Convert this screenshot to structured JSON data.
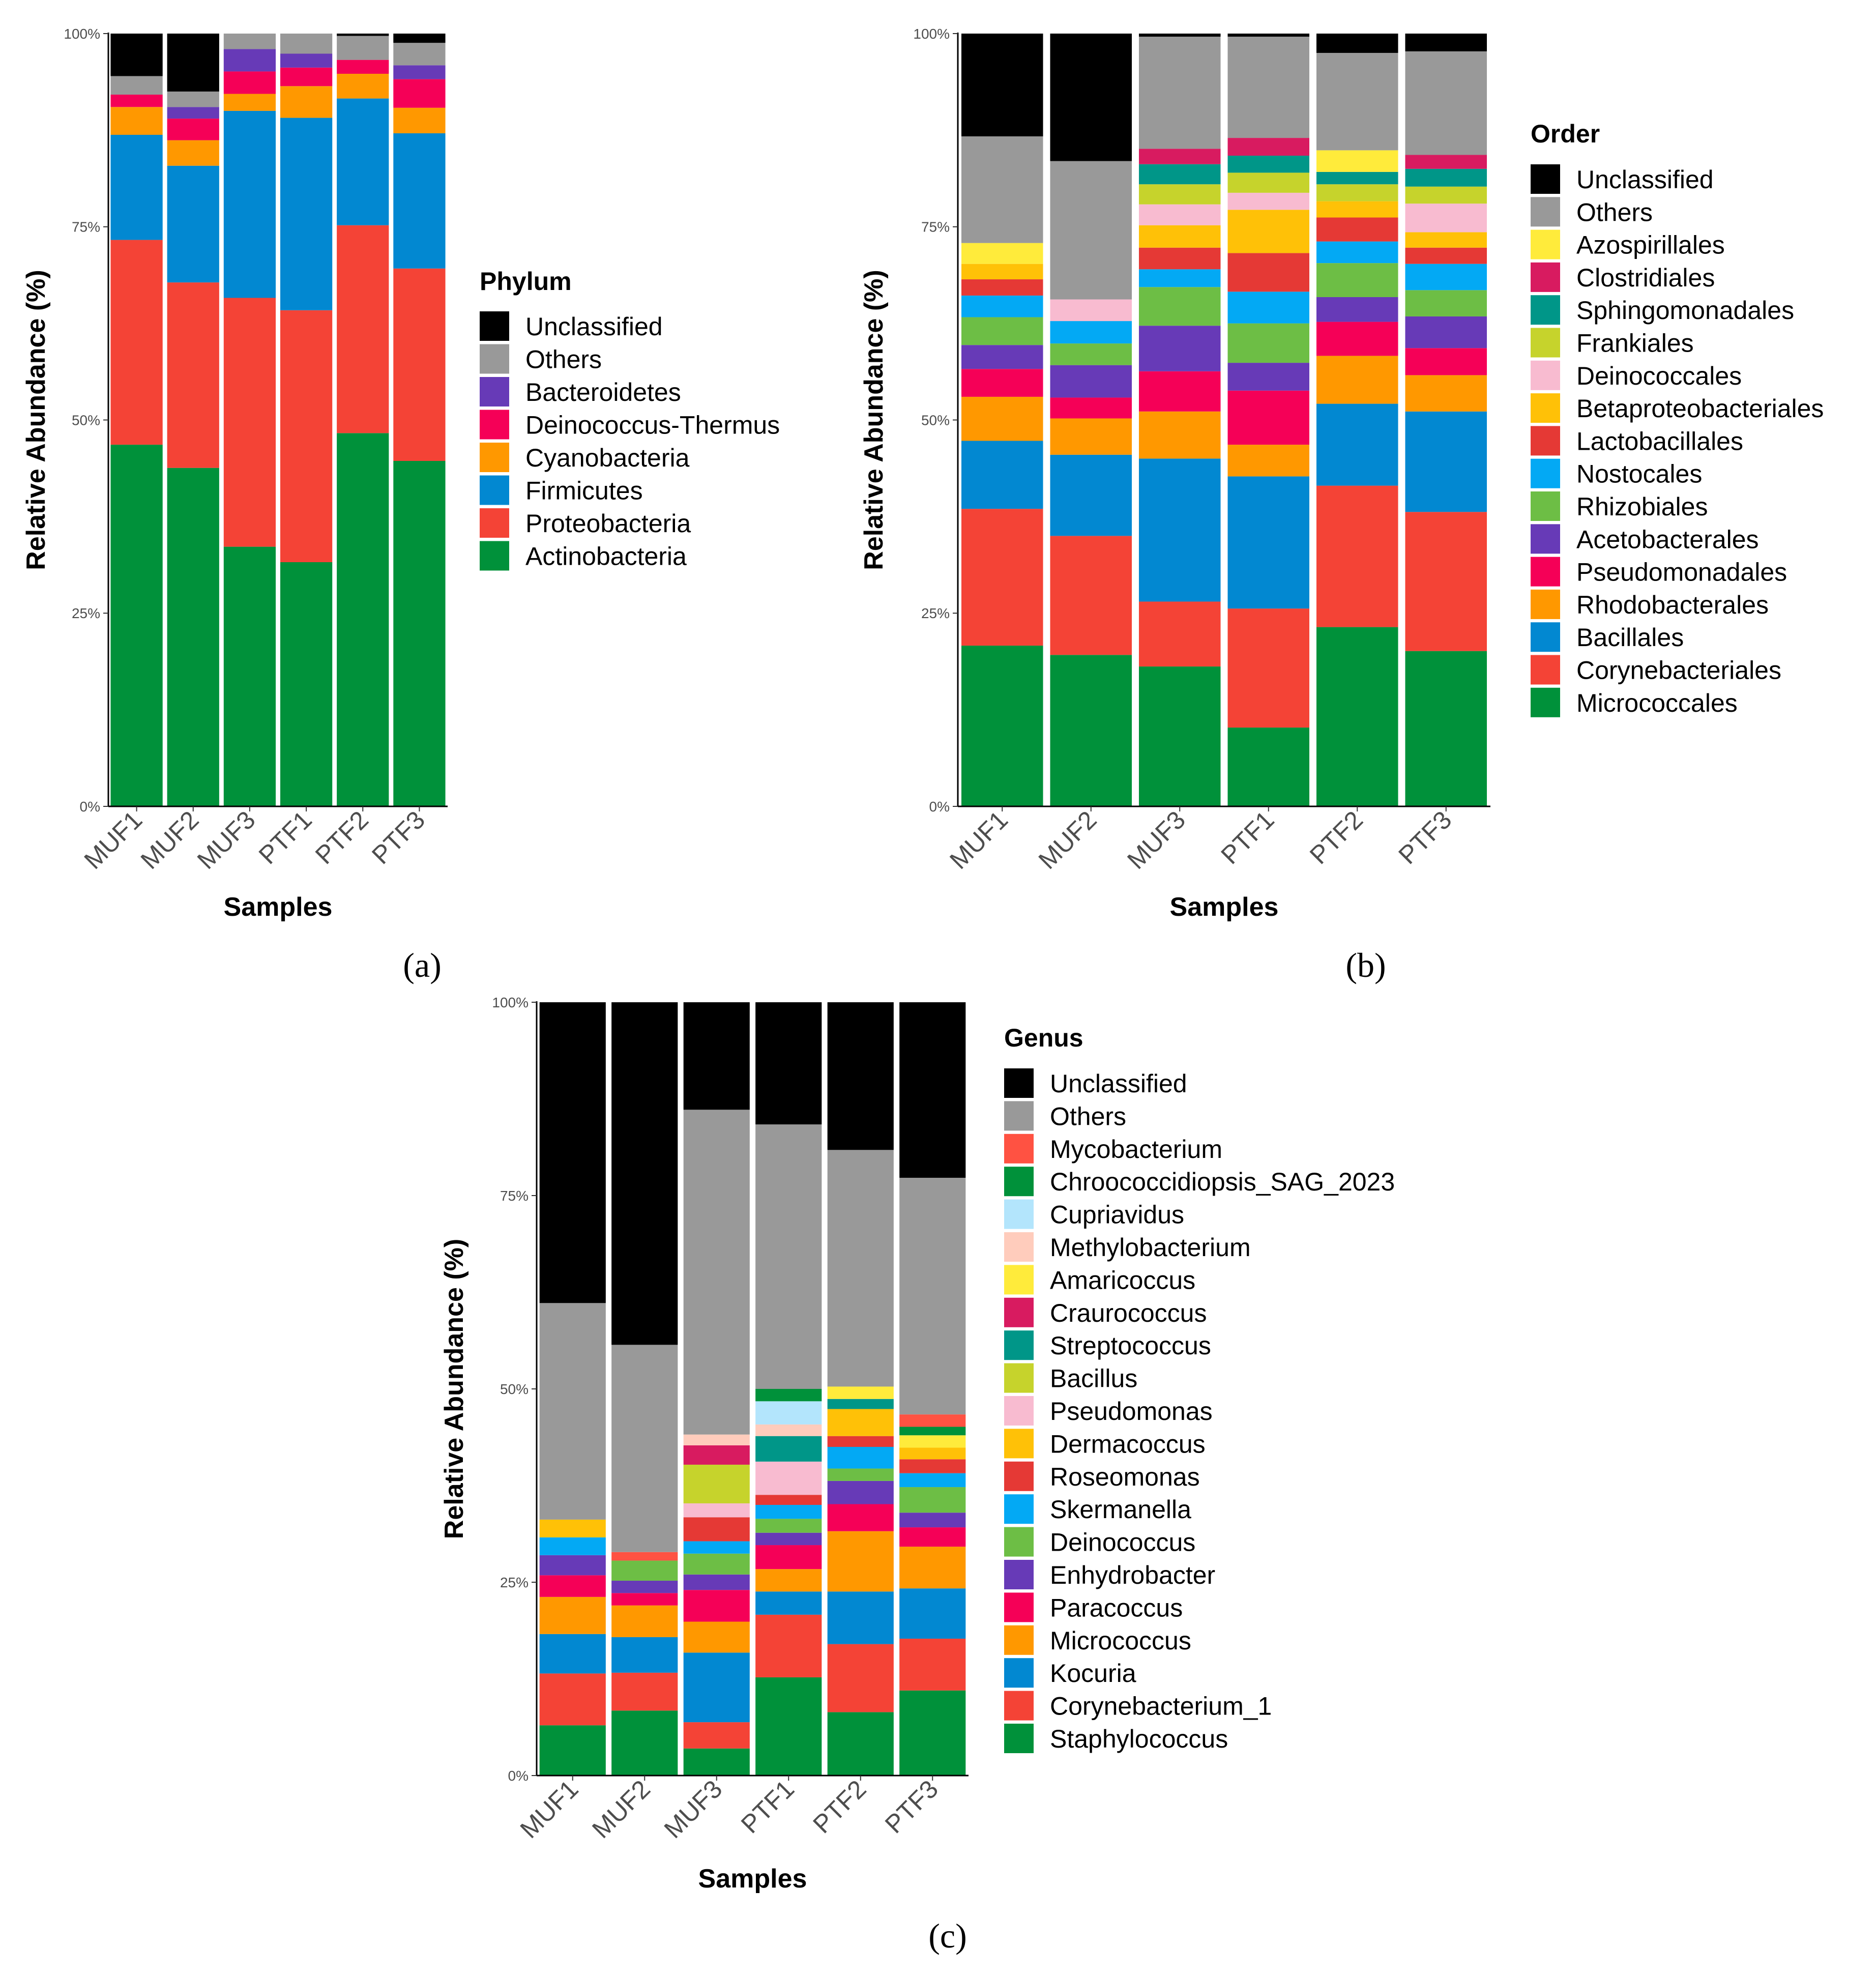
{
  "figure": {
    "colors": {
      "Unclassified": "#000000",
      "Others": "#999999",
      "Actinobacteria": "#00913A",
      "Proteobacteria": "#F44336",
      "Firmicutes": "#0288D1",
      "Cyanobacteria": "#FF9800",
      "Deinococcus-Thermus": "#F50057",
      "Bacteroidetes": "#673AB7",
      "Micrococcales": "#00913A",
      "Corynebacteriales": "#F44336",
      "Bacillales": "#0288D1",
      "Rhodobacterales": "#FF9800",
      "Pseudomonadales": "#F50057",
      "Acetobacterales": "#673AB7",
      "Rhizobiales": "#6DBE45",
      "Nostocales": "#03A9F4",
      "Lactobacillales": "#E53935",
      "Betaproteobacteriales": "#FFC107",
      "Deinococcales": "#F8BBD0",
      "Frankiales": "#C6D32C",
      "Sphingomonadales": "#009688",
      "Clostridiales": "#D81B60",
      "Azospirillales": "#FFEB3B",
      "Staphylococcus": "#00913A",
      "Corynebacterium_1": "#F44336",
      "Kocuria": "#0288D1",
      "Micrococcus": "#FF9800",
      "Paracoccus": "#F50057",
      "Enhydrobacter": "#673AB7",
      "Deinococcus": "#6DBE45",
      "Skermanella": "#03A9F4",
      "Roseomonas": "#E53935",
      "Dermacoccus": "#FFC107",
      "Pseudomonas": "#F8BBD0",
      "Bacillus": "#C6D32C",
      "Streptococcus": "#009688",
      "Craurococcus": "#D81B60",
      "Amaricoccus": "#FFEB3B",
      "Methylobacterium": "#FFCCBC",
      "Cupriavidus": "#B3E5FC",
      "Chroococcidiopsis_SAG_2023": "#00913A",
      "Mycobacterium": "#FF5242"
    }
  },
  "chart_data": [
    {
      "type": "bar",
      "stacked": true,
      "caption": "(a)",
      "xlabel": "Samples",
      "ylabel": "Relative Abundance (%)",
      "ylim": [
        0,
        100
      ],
      "yticks": [
        "0%",
        "25%",
        "50%",
        "75%",
        "100%"
      ],
      "legend_title": "Phylum",
      "legend_position": "right",
      "categories": [
        "MUF1",
        "MUF2",
        "MUF3",
        "PTF1",
        "PTF2",
        "PTF3"
      ],
      "legend_order": [
        "Unclassified",
        "Others",
        "Bacteroidetes",
        "Deinococcus-Thermus",
        "Cyanobacteria",
        "Firmicutes",
        "Proteobacteria",
        "Actinobacteria"
      ],
      "series": [
        {
          "name": "Actinobacteria",
          "values": [
            46.8,
            43.8,
            33.6,
            31.6,
            48.3,
            44.7
          ]
        },
        {
          "name": "Proteobacteria",
          "values": [
            26.5,
            24.0,
            32.2,
            32.6,
            26.9,
            24.9
          ]
        },
        {
          "name": "Firmicutes",
          "values": [
            13.6,
            15.1,
            24.2,
            24.9,
            16.4,
            17.5
          ]
        },
        {
          "name": "Cyanobacteria",
          "values": [
            3.6,
            3.3,
            2.2,
            4.1,
            3.2,
            3.3
          ]
        },
        {
          "name": "Deinococcus-Thermus",
          "values": [
            1.6,
            2.8,
            2.9,
            2.4,
            1.8,
            3.7
          ]
        },
        {
          "name": "Bacteroidetes",
          "values": [
            0.0,
            1.5,
            2.9,
            1.8,
            0.0,
            1.8
          ]
        },
        {
          "name": "Others",
          "values": [
            2.4,
            2.0,
            2.0,
            2.6,
            3.1,
            2.9
          ]
        },
        {
          "name": "Unclassified",
          "values": [
            5.5,
            7.5,
            0.0,
            0.0,
            0.3,
            1.2
          ]
        }
      ]
    },
    {
      "type": "bar",
      "stacked": true,
      "caption": "(b)",
      "xlabel": "Samples",
      "ylabel": "Relative Abundance (%)",
      "ylim": [
        0,
        100
      ],
      "yticks": [
        "0%",
        "25%",
        "50%",
        "75%",
        "100%"
      ],
      "legend_title": "Order",
      "legend_position": "right",
      "categories": [
        "MUF1",
        "MUF2",
        "MUF3",
        "PTF1",
        "PTF2",
        "PTF3"
      ],
      "legend_order": [
        "Unclassified",
        "Others",
        "Azospirillales",
        "Clostridiales",
        "Sphingomonadales",
        "Frankiales",
        "Deinococcales",
        "Betaproteobacteriales",
        "Lactobacillales",
        "Nostocales",
        "Rhizobiales",
        "Acetobacterales",
        "Pseudomonadales",
        "Rhodobacterales",
        "Bacillales",
        "Corynebacteriales",
        "Micrococcales"
      ],
      "series": [
        {
          "name": "Micrococcales",
          "values": [
            20.8,
            19.6,
            18.1,
            10.2,
            23.2,
            20.1
          ]
        },
        {
          "name": "Corynebacteriales",
          "values": [
            17.7,
            15.4,
            8.4,
            15.4,
            18.3,
            18.0
          ]
        },
        {
          "name": "Bacillales",
          "values": [
            8.8,
            10.5,
            18.5,
            17.1,
            10.6,
            13.0
          ]
        },
        {
          "name": "Rhodobacterales",
          "values": [
            5.7,
            4.7,
            6.1,
            4.1,
            6.2,
            4.7
          ]
        },
        {
          "name": "Pseudomonadales",
          "values": [
            3.6,
            2.7,
            5.2,
            7.0,
            4.4,
            3.5
          ]
        },
        {
          "name": "Acetobacterales",
          "values": [
            3.1,
            4.2,
            5.9,
            3.6,
            3.2,
            4.1
          ]
        },
        {
          "name": "Rhizobiales",
          "values": [
            3.6,
            2.8,
            5.0,
            5.1,
            4.4,
            3.4
          ]
        },
        {
          "name": "Nostocales",
          "values": [
            2.8,
            2.9,
            2.3,
            4.1,
            2.8,
            3.4
          ]
        },
        {
          "name": "Lactobacillales",
          "values": [
            2.1,
            0.0,
            2.8,
            5.0,
            3.1,
            2.1
          ]
        },
        {
          "name": "Betaproteobacteriales",
          "values": [
            2.0,
            0.0,
            2.9,
            5.6,
            2.1,
            2.0
          ]
        },
        {
          "name": "Deinococcales",
          "values": [
            0.0,
            2.8,
            2.7,
            2.2,
            0.0,
            3.7
          ]
        },
        {
          "name": "Frankiales",
          "values": [
            0.0,
            0.0,
            2.6,
            2.6,
            2.2,
            2.2
          ]
        },
        {
          "name": "Sphingomonadales",
          "values": [
            0.0,
            0.0,
            2.6,
            2.2,
            1.6,
            2.3
          ]
        },
        {
          "name": "Clostridiales",
          "values": [
            0.0,
            0.0,
            2.0,
            2.3,
            0.0,
            1.8
          ]
        },
        {
          "name": "Azospirillales",
          "values": [
            2.7,
            0.0,
            0.0,
            0.0,
            2.8,
            0.0
          ]
        },
        {
          "name": "Others",
          "values": [
            13.8,
            17.9,
            14.5,
            13.1,
            12.6,
            13.4
          ]
        },
        {
          "name": "Unclassified",
          "values": [
            13.3,
            16.5,
            0.4,
            0.4,
            2.5,
            2.3
          ]
        }
      ]
    },
    {
      "type": "bar",
      "stacked": true,
      "caption": "(c)",
      "xlabel": "Samples",
      "ylabel": "Relative Abundance (%)",
      "ylim": [
        0,
        100
      ],
      "yticks": [
        "0%",
        "25%",
        "50%",
        "75%",
        "100%"
      ],
      "legend_title": "Genus",
      "legend_position": "right",
      "categories": [
        "MUF1",
        "MUF2",
        "MUF3",
        "PTF1",
        "PTF2",
        "PTF3"
      ],
      "legend_order": [
        "Unclassified",
        "Others",
        "Mycobacterium",
        "Chroococcidiopsis_SAG_2023",
        "Cupriavidus",
        "Methylobacterium",
        "Amaricoccus",
        "Craurococcus",
        "Streptococcus",
        "Bacillus",
        "Pseudomonas",
        "Dermacoccus",
        "Roseomonas",
        "Skermanella",
        "Deinococcus",
        "Enhydrobacter",
        "Paracoccus",
        "Micrococcus",
        "Kocuria",
        "Corynebacterium_1",
        "Staphylococcus"
      ],
      "series": [
        {
          "name": "Staphylococcus",
          "values": [
            6.5,
            8.4,
            3.5,
            12.7,
            8.2,
            11.0
          ]
        },
        {
          "name": "Corynebacterium_1",
          "values": [
            6.7,
            4.9,
            3.4,
            8.1,
            8.8,
            6.7
          ]
        },
        {
          "name": "Kocuria",
          "values": [
            5.1,
            4.6,
            9.0,
            3.0,
            6.8,
            6.5
          ]
        },
        {
          "name": "Micrococcus",
          "values": [
            4.8,
            4.1,
            4.0,
            2.9,
            7.8,
            5.4
          ]
        },
        {
          "name": "Paracoccus",
          "values": [
            2.8,
            1.6,
            4.1,
            3.1,
            3.5,
            2.5
          ]
        },
        {
          "name": "Enhydrobacter",
          "values": [
            2.6,
            1.6,
            2.0,
            1.6,
            3.0,
            1.9
          ]
        },
        {
          "name": "Deinococcus",
          "values": [
            0.0,
            2.6,
            2.7,
            1.8,
            1.6,
            3.3
          ]
        },
        {
          "name": "Skermanella",
          "values": [
            2.3,
            0.0,
            1.6,
            1.8,
            2.8,
            1.8
          ]
        },
        {
          "name": "Roseomonas",
          "values": [
            0.0,
            0.0,
            3.1,
            1.3,
            1.4,
            1.8
          ]
        },
        {
          "name": "Dermacoccus",
          "values": [
            2.3,
            0.0,
            0.0,
            0.0,
            3.5,
            1.5
          ]
        },
        {
          "name": "Pseudomonas",
          "values": [
            0.0,
            0.0,
            1.8,
            4.3,
            0.0,
            0.0
          ]
        },
        {
          "name": "Bacillus",
          "values": [
            0.0,
            0.0,
            5.0,
            0.0,
            0.0,
            0.0
          ]
        },
        {
          "name": "Streptococcus",
          "values": [
            0.0,
            0.0,
            0.0,
            3.3,
            1.3,
            0.0
          ]
        },
        {
          "name": "Craurococcus",
          "values": [
            0.0,
            0.0,
            2.5,
            0.0,
            0.0,
            0.0
          ]
        },
        {
          "name": "Amaricoccus",
          "values": [
            0.0,
            0.0,
            0.0,
            0.0,
            1.6,
            1.6
          ]
        },
        {
          "name": "Methylobacterium",
          "values": [
            0.0,
            0.0,
            1.4,
            1.5,
            0.0,
            0.0
          ]
        },
        {
          "name": "Cupriavidus",
          "values": [
            0.0,
            0.0,
            0.0,
            3.0,
            0.0,
            0.0
          ]
        },
        {
          "name": "Chroococcidiopsis_SAG_2023",
          "values": [
            0.0,
            0.0,
            0.0,
            1.6,
            0.0,
            1.1
          ]
        },
        {
          "name": "Mycobacterium",
          "values": [
            0.0,
            1.1,
            0.0,
            0.0,
            0.0,
            1.6
          ]
        },
        {
          "name": "Others",
          "values": [
            28.0,
            26.8,
            42.0,
            34.2,
            30.6,
            30.6
          ]
        },
        {
          "name": "Unclassified",
          "values": [
            38.9,
            44.3,
            13.9,
            15.8,
            19.1,
            22.7
          ]
        }
      ]
    }
  ]
}
